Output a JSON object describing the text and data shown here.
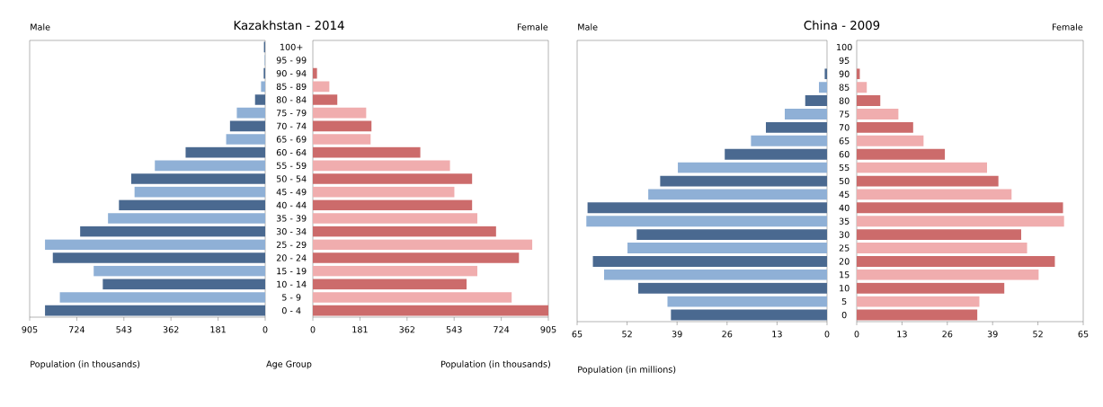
{
  "chart_data": [
    {
      "type": "bar",
      "orientation": "horizontal",
      "title": "Kazakhstan - 2014",
      "annotations": [
        "Male"
      ],
      "xlabel": "Population (in thousands)",
      "ylabel": "Age Group",
      "categories": [
        "100+",
        "95 - 99",
        "90 - 94",
        "85 - 89",
        "80 - 84",
        "75 - 79",
        "70 - 74",
        "65 - 69",
        "60 - 64",
        "55 - 59",
        "50 - 54",
        "45 - 49",
        "40 - 44",
        "35 - 39",
        "30 - 34",
        "25 - 29",
        "20 - 24",
        "15 - 19",
        "10 - 14",
        "5 - 9",
        "0 - 4"
      ],
      "values": [
        5,
        2,
        6,
        16,
        39,
        109,
        136,
        150,
        306,
        424,
        515,
        502,
        562,
        604,
        711,
        846,
        816,
        659,
        624,
        789,
        846
      ],
      "colors": [
        "#4a6990",
        "#8fb0d6",
        "#4a6990",
        "#8fb0d6",
        "#4a6990",
        "#8fb0d6",
        "#4a6990",
        "#8fb0d6",
        "#4a6990",
        "#8fb0d6",
        "#4a6990",
        "#8fb0d6",
        "#4a6990",
        "#8fb0d6",
        "#4a6990",
        "#8fb0d6",
        "#4a6990",
        "#8fb0d6",
        "#4a6990",
        "#8fb0d6",
        "#4a6990"
      ],
      "xlim": [
        905,
        0
      ],
      "xticks": [
        905,
        724,
        543,
        362,
        181,
        0
      ]
    },
    {
      "type": "bar",
      "orientation": "horizontal",
      "annotations": [
        "Female"
      ],
      "xlabel": "Population (in thousands)",
      "tick_labels": "x",
      "categories": [
        null,
        null,
        null,
        null,
        null,
        null,
        null,
        null,
        null,
        null,
        null,
        null,
        null,
        null,
        null,
        null,
        null,
        null,
        null,
        null,
        null
      ],
      "values": [
        null,
        null,
        16,
        64,
        94,
        205,
        226,
        222,
        413,
        527,
        612,
        544,
        612,
        632,
        704,
        843,
        792,
        632,
        591,
        764,
        905
      ],
      "colors": [
        "#cc6b6b",
        "#f0adae",
        "#cc6b6b",
        "#f0adae",
        "#cc6b6b",
        "#f0adae",
        "#cc6b6b",
        "#f0adae",
        "#cc6b6b",
        "#f0adae",
        "#cc6b6b",
        "#f0adae",
        "#cc6b6b",
        "#f0adae",
        "#cc6b6b",
        "#f0adae",
        "#cc6b6b",
        "#f0adae",
        "#cc6b6b",
        "#f0adae",
        "#cc6b6b"
      ],
      "xlim": [
        0,
        905
      ],
      "xticks": [
        0,
        181,
        362,
        543,
        724,
        905
      ]
    },
    {
      "type": "bar",
      "orientation": "horizontal",
      "title": "China - 2009",
      "annotations": [
        "Male"
      ],
      "xlabel": "Population (in millions)",
      "categories": [
        "100",
        "95",
        "90",
        "85",
        "80",
        "75",
        "70",
        "65",
        "60",
        "55",
        "50",
        "45",
        "40",
        "35",
        "30",
        "25",
        "20",
        "15",
        "10",
        "5",
        "0"
      ],
      "values": [
        null,
        null,
        0.6,
        2.1,
        5.7,
        11.0,
        15.9,
        19.8,
        26.6,
        38.8,
        43.4,
        46.5,
        62.3,
        62.6,
        49.5,
        51.9,
        60.9,
        58.0,
        49.1,
        41.5,
        40.6
      ],
      "colors": [
        "#4a6990",
        "#8fb0d6",
        "#4a6990",
        "#8fb0d6",
        "#4a6990",
        "#8fb0d6",
        "#4a6990",
        "#8fb0d6",
        "#4a6990",
        "#8fb0d6",
        "#4a6990",
        "#8fb0d6",
        "#4a6990",
        "#8fb0d6",
        "#4a6990",
        "#8fb0d6",
        "#4a6990",
        "#8fb0d6",
        "#4a6990",
        "#8fb0d6",
        "#4a6990"
      ],
      "xlim": [
        65,
        0
      ],
      "xticks": [
        65,
        52,
        39,
        26,
        13,
        0
      ]
    },
    {
      "type": "bar",
      "orientation": "horizontal",
      "annotations": [
        "Female"
      ],
      "tick_labels": "x",
      "categories": [
        null,
        null,
        null,
        null,
        null,
        null,
        null,
        null,
        null,
        null,
        null,
        null,
        null,
        null,
        null,
        null,
        null,
        null,
        null,
        null,
        null
      ],
      "values": [
        null,
        0,
        0.9,
        2.9,
        6.8,
        12.0,
        16.2,
        19.2,
        25.3,
        37.4,
        40.7,
        44.5,
        59.2,
        59.5,
        47.2,
        48.9,
        56.9,
        52.2,
        42.4,
        35.2,
        34.6
      ],
      "colors": [
        "#cc6b6b",
        "#f0adae",
        "#cc6b6b",
        "#f0adae",
        "#cc6b6b",
        "#f0adae",
        "#cc6b6b",
        "#f0adae",
        "#cc6b6b",
        "#f0adae",
        "#cc6b6b",
        "#f0adae",
        "#cc6b6b",
        "#f0adae",
        "#cc6b6b",
        "#f0adae",
        "#cc6b6b",
        "#f0adae",
        "#cc6b6b",
        "#f0adae",
        "#cc6b6b"
      ],
      "xlim": [
        0,
        65
      ],
      "xticks": [
        0,
        13,
        26,
        39,
        52,
        65
      ]
    }
  ]
}
